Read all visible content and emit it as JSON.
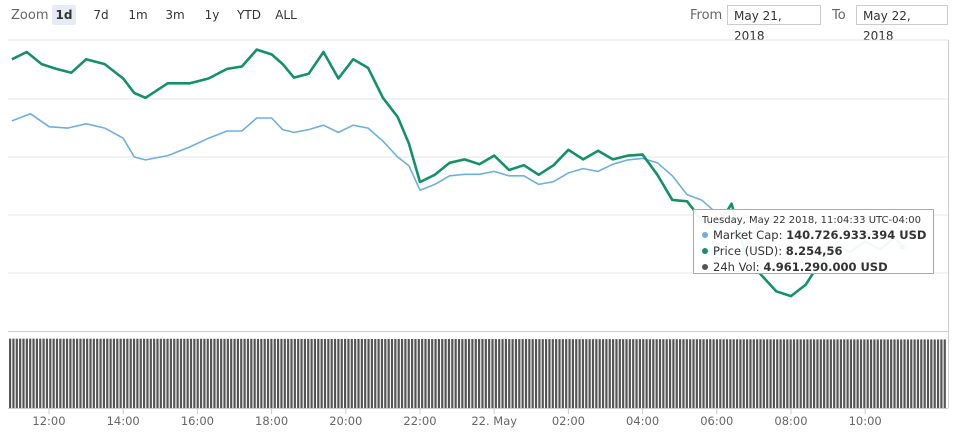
{
  "toolbar": {
    "zoom_label": "Zoom",
    "zoom_buttons": [
      {
        "label": "1d",
        "active": true
      },
      {
        "label": "7d",
        "active": false
      },
      {
        "label": "1m",
        "active": false
      },
      {
        "label": "3m",
        "active": false
      },
      {
        "label": "1y",
        "active": false
      },
      {
        "label": "YTD",
        "active": false
      },
      {
        "label": "ALL",
        "active": false
      }
    ],
    "from_label": "From",
    "from_value": "May 21, 2018",
    "to_label": "To",
    "to_value": "May 22, 2018"
  },
  "tooltip": {
    "header": "Tuesday, May 22 2018, 11:04:33 UTC-04:00",
    "rows": [
      {
        "label": "Market Cap:",
        "value": "140.726.933.394 USD",
        "color": "#6cb0e0"
      },
      {
        "label": "Price (USD):",
        "value": "8.254,56",
        "color": "#149166"
      },
      {
        "label": "24h Vol:",
        "value": "4.961.290.000 USD",
        "color": "#555555"
      }
    ]
  },
  "chart_data": {
    "type": "line",
    "title": "",
    "x_ticks": [
      "12:00",
      "14:00",
      "16:00",
      "18:00",
      "20:00",
      "22:00",
      "22. May",
      "02:00",
      "04:00",
      "06:00",
      "08:00",
      "10:00"
    ],
    "x_hours": [
      0.0,
      2.0,
      4.0,
      6.0,
      8.0,
      10.0,
      12.0,
      14.0,
      16.0,
      18.0,
      20.0,
      22.0
    ],
    "series": [
      {
        "name": "Price (USD)",
        "color": "#149166",
        "y_range": [
          8140,
          8680
        ],
        "x": [
          -1.0,
          -0.6,
          -0.2,
          0.2,
          0.6,
          1.0,
          1.5,
          2.0,
          2.3,
          2.6,
          3.2,
          3.8,
          4.3,
          4.8,
          5.2,
          5.6,
          6.0,
          6.3,
          6.6,
          7.0,
          7.4,
          7.8,
          8.2,
          8.6,
          9.0,
          9.4,
          9.7,
          10.0,
          10.4,
          10.8,
          11.2,
          11.6,
          12.0,
          12.4,
          12.8,
          13.2,
          13.6,
          14.0,
          14.4,
          14.8,
          15.2,
          15.6,
          16.0,
          16.4,
          16.8,
          17.2,
          17.6,
          18.0,
          18.4,
          18.8,
          19.2,
          19.6,
          20.0,
          20.4,
          20.8,
          21.2,
          21.6,
          22.0,
          22.4,
          22.8,
          23.0
        ],
        "y": [
          8640,
          8655,
          8630,
          8620,
          8612,
          8640,
          8630,
          8600,
          8570,
          8560,
          8590,
          8590,
          8600,
          8620,
          8625,
          8660,
          8650,
          8630,
          8602,
          8610,
          8655,
          8600,
          8640,
          8622,
          8560,
          8520,
          8465,
          8385,
          8400,
          8425,
          8432,
          8422,
          8440,
          8410,
          8420,
          8400,
          8420,
          8452,
          8432,
          8450,
          8432,
          8440,
          8442,
          8400,
          8348,
          8345,
          8305,
          8290,
          8340,
          8228,
          8192,
          8158,
          8148,
          8172,
          8220,
          8250,
          8240,
          8262,
          8245,
          8270,
          8250
        ]
      },
      {
        "name": "Market Cap",
        "color": "#6cb0e0",
        "y_range": [
          138000000000,
          147000000000
        ],
        "x": [
          -1.0,
          -0.5,
          0.0,
          0.5,
          1.0,
          1.5,
          2.0,
          2.3,
          2.6,
          3.2,
          3.8,
          4.3,
          4.8,
          5.2,
          5.6,
          6.0,
          6.3,
          6.6,
          7.0,
          7.4,
          7.8,
          8.2,
          8.6,
          9.0,
          9.4,
          9.7,
          10.0,
          10.4,
          10.8,
          11.2,
          11.6,
          12.0,
          12.4,
          12.8,
          13.2,
          13.6,
          14.0,
          14.4,
          14.8,
          15.2,
          15.6,
          16.0,
          16.4,
          16.8,
          17.2,
          17.6,
          18.0,
          18.4,
          18.8,
          19.2,
          19.6,
          20.0,
          20.4,
          20.8,
          21.2,
          21.6,
          22.0,
          22.4,
          22.8,
          23.0
        ],
        "y": [
          144200000000,
          144450000000,
          144000000000,
          143950000000,
          144100000000,
          143950000000,
          143600000000,
          142950000000,
          142850000000,
          143000000000,
          143300000000,
          143600000000,
          143850000000,
          143850000000,
          144300000000,
          144300000000,
          143900000000,
          143800000000,
          143900000000,
          144050000000,
          143800000000,
          144050000000,
          143950000000,
          143500000000,
          142950000000,
          142650000000,
          141800000000,
          142000000000,
          142300000000,
          142350000000,
          142350000000,
          142450000000,
          142300000000,
          142300000000,
          142000000000,
          142100000000,
          142400000000,
          142550000000,
          142450000000,
          142700000000,
          142850000000,
          142900000000,
          142750000000,
          142300000000,
          141650000000,
          141450000000,
          141000000000,
          140800000000,
          140950000000,
          140550000000,
          140300000000,
          140250000000,
          140450000000,
          140650000000,
          140900000000,
          140850000000,
          140950000000,
          140700000000,
          140950000000,
          140726933394
        ]
      },
      {
        "name": "24h Vol",
        "color": "#555555",
        "y_range": [
          0,
          5500000000
        ],
        "start_value": 5020000000,
        "end_value": 4961290000
      }
    ]
  }
}
